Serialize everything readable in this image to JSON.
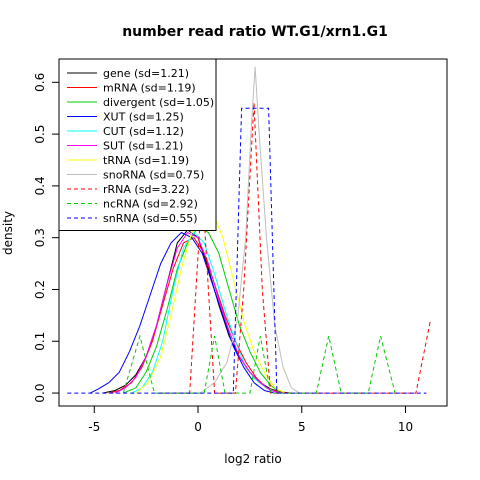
{
  "chart_data": {
    "type": "line",
    "title": "number read ratio WT.G1/xrn1.G1",
    "xlabel": "log2 ratio",
    "ylabel": "density",
    "xlim": [
      -6.7,
      12.0
    ],
    "ylim": [
      -0.025,
      0.645
    ],
    "x_ticks": [
      -5,
      0,
      5,
      10
    ],
    "y_ticks": [
      0.0,
      0.1,
      0.2,
      0.3,
      0.4,
      0.5,
      0.6
    ],
    "grid": false,
    "legend_position": "top-left",
    "series": [
      {
        "name": "gene (sd=1.21)",
        "color": "#000000",
        "dash": "solid",
        "points": [
          [
            -4.6,
            0
          ],
          [
            -4,
            0.005
          ],
          [
            -3.5,
            0.015
          ],
          [
            -3,
            0.035
          ],
          [
            -2.5,
            0.07
          ],
          [
            -2,
            0.13
          ],
          [
            -1.5,
            0.21
          ],
          [
            -1,
            0.29
          ],
          [
            -0.5,
            0.315
          ],
          [
            0,
            0.3
          ],
          [
            0.5,
            0.24
          ],
          [
            1,
            0.17
          ],
          [
            1.5,
            0.11
          ],
          [
            2,
            0.07
          ],
          [
            2.5,
            0.04
          ],
          [
            3,
            0.02
          ],
          [
            3.5,
            0.008
          ],
          [
            4,
            0.002
          ],
          [
            4.5,
            0
          ]
        ]
      },
      {
        "name": "mRNA (sd=1.19)",
        "color": "#ff0000",
        "dash": "solid",
        "points": [
          [
            -4.3,
            0
          ],
          [
            -3.8,
            0.005
          ],
          [
            -3.2,
            0.02
          ],
          [
            -2.7,
            0.05
          ],
          [
            -2.2,
            0.1
          ],
          [
            -1.7,
            0.17
          ],
          [
            -1.2,
            0.24
          ],
          [
            -0.7,
            0.29
          ],
          [
            -0.2,
            0.3
          ],
          [
            0.3,
            0.27
          ],
          [
            0.8,
            0.21
          ],
          [
            1.3,
            0.15
          ],
          [
            1.8,
            0.1
          ],
          [
            2.3,
            0.06
          ],
          [
            2.8,
            0.03
          ],
          [
            3.3,
            0.01
          ],
          [
            3.9,
            0.002
          ],
          [
            4.5,
            0
          ]
        ]
      },
      {
        "name": "divergent (sd=1.05)",
        "color": "#00cc00",
        "dash": "solid",
        "points": [
          [
            -3.6,
            0
          ],
          [
            -3,
            0.01
          ],
          [
            -2.5,
            0.04
          ],
          [
            -2,
            0.09
          ],
          [
            -1.5,
            0.16
          ],
          [
            -1,
            0.24
          ],
          [
            -0.5,
            0.29
          ],
          [
            0,
            0.32
          ],
          [
            0.5,
            0.31
          ],
          [
            1,
            0.27
          ],
          [
            1.5,
            0.2
          ],
          [
            2,
            0.13
          ],
          [
            2.5,
            0.08
          ],
          [
            3,
            0.04
          ],
          [
            3.5,
            0.015
          ],
          [
            4,
            0
          ]
        ]
      },
      {
        "name": "XUT (sd=1.25)",
        "color": "#0000ff",
        "dash": "solid",
        "points": [
          [
            -5.2,
            0
          ],
          [
            -4.8,
            0.008
          ],
          [
            -4.3,
            0.02
          ],
          [
            -3.8,
            0.04
          ],
          [
            -3.3,
            0.08
          ],
          [
            -2.8,
            0.13
          ],
          [
            -2.3,
            0.19
          ],
          [
            -1.8,
            0.25
          ],
          [
            -1.3,
            0.29
          ],
          [
            -0.8,
            0.31
          ],
          [
            -0.3,
            0.3
          ],
          [
            0.2,
            0.27
          ],
          [
            0.7,
            0.21
          ],
          [
            1.2,
            0.15
          ],
          [
            1.7,
            0.09
          ],
          [
            2.2,
            0.05
          ],
          [
            2.7,
            0.02
          ],
          [
            3.2,
            0.005
          ],
          [
            3.7,
            0
          ]
        ]
      },
      {
        "name": "CUT (sd=1.12)",
        "color": "#00ffff",
        "dash": "solid",
        "points": [
          [
            -3.2,
            0
          ],
          [
            -2.7,
            0.01
          ],
          [
            -2.2,
            0.04
          ],
          [
            -1.7,
            0.1
          ],
          [
            -1.2,
            0.2
          ],
          [
            -0.7,
            0.28
          ],
          [
            -0.2,
            0.31
          ],
          [
            0.3,
            0.29
          ],
          [
            0.8,
            0.23
          ],
          [
            1.3,
            0.16
          ],
          [
            1.8,
            0.1
          ],
          [
            2.3,
            0.05
          ],
          [
            2.8,
            0.025
          ],
          [
            3.3,
            0.01
          ],
          [
            3.9,
            0
          ]
        ]
      },
      {
        "name": "SUT (sd=1.21)",
        "color": "#ff00ff",
        "dash": "solid",
        "points": [
          [
            -4,
            0
          ],
          [
            -3.5,
            0.01
          ],
          [
            -3,
            0.03
          ],
          [
            -2.5,
            0.07
          ],
          [
            -2,
            0.13
          ],
          [
            -1.5,
            0.21
          ],
          [
            -1,
            0.28
          ],
          [
            -0.5,
            0.31
          ],
          [
            0,
            0.3
          ],
          [
            0.5,
            0.25
          ],
          [
            1,
            0.18
          ],
          [
            1.5,
            0.12
          ],
          [
            2,
            0.07
          ],
          [
            2.5,
            0.04
          ],
          [
            3,
            0.02
          ],
          [
            3.5,
            0.005
          ],
          [
            4,
            0
          ]
        ]
      },
      {
        "name": "tRNA (sd=1.19)",
        "color": "#ffff00",
        "dash": "solid",
        "points": [
          [
            -3,
            0
          ],
          [
            -2.4,
            0.02
          ],
          [
            -1.8,
            0.07
          ],
          [
            -1.3,
            0.15
          ],
          [
            -0.8,
            0.24
          ],
          [
            -0.3,
            0.31
          ],
          [
            0.2,
            0.34
          ],
          [
            0.7,
            0.35
          ],
          [
            1.2,
            0.3
          ],
          [
            1.7,
            0.22
          ],
          [
            2.2,
            0.14
          ],
          [
            2.7,
            0.08
          ],
          [
            3.2,
            0.04
          ],
          [
            3.7,
            0.01
          ],
          [
            4.2,
            0
          ]
        ]
      },
      {
        "name": "snoRNA (sd=0.75)",
        "color": "#bebebe",
        "dash": "solid",
        "points": [
          [
            -0.6,
            0
          ],
          [
            0.1,
            0
          ],
          [
            0.8,
            0.02
          ],
          [
            1.4,
            0.06
          ],
          [
            1.9,
            0.14
          ],
          [
            2.3,
            0.3
          ],
          [
            2.55,
            0.5
          ],
          [
            2.75,
            0.63
          ],
          [
            2.95,
            0.5
          ],
          [
            3.3,
            0.3
          ],
          [
            3.7,
            0.13
          ],
          [
            4.1,
            0.05
          ],
          [
            4.5,
            0.01
          ],
          [
            4.9,
            0
          ]
        ]
      },
      {
        "name": "rRNA (sd=3.22)",
        "color": "#ff0000",
        "dash": "dashed",
        "points": [
          [
            -1.8,
            0
          ],
          [
            -0.4,
            0
          ],
          [
            0.2,
            0.4
          ],
          [
            0.8,
            0
          ],
          [
            1.8,
            0
          ],
          [
            2.2,
            0.2
          ],
          [
            2.7,
            0.56
          ],
          [
            3.1,
            0.2
          ],
          [
            3.5,
            0
          ],
          [
            10.5,
            0
          ],
          [
            11.2,
            0.14
          ]
        ]
      },
      {
        "name": "ncRNA (sd=2.92)",
        "color": "#00cc00",
        "dash": "dashed",
        "points": [
          [
            -3.6,
            0
          ],
          [
            -2.8,
            0.11
          ],
          [
            -2.1,
            0
          ],
          [
            0.3,
            0
          ],
          [
            0.8,
            0.11
          ],
          [
            1.3,
            0
          ],
          [
            2.5,
            0
          ],
          [
            3,
            0.11
          ],
          [
            3.5,
            0
          ],
          [
            5.7,
            0
          ],
          [
            6.3,
            0.11
          ],
          [
            6.9,
            0
          ],
          [
            8.2,
            0
          ],
          [
            8.8,
            0.11
          ],
          [
            9.5,
            0
          ]
        ]
      },
      {
        "name": "snRNA (sd=0.55)",
        "color": "#0000ff",
        "dash": "dashed",
        "points": [
          [
            -6.3,
            0
          ],
          [
            1.7,
            0
          ],
          [
            2.1,
            0.55
          ],
          [
            3.4,
            0.55
          ],
          [
            3.8,
            0
          ],
          [
            11,
            0
          ]
        ]
      }
    ]
  }
}
